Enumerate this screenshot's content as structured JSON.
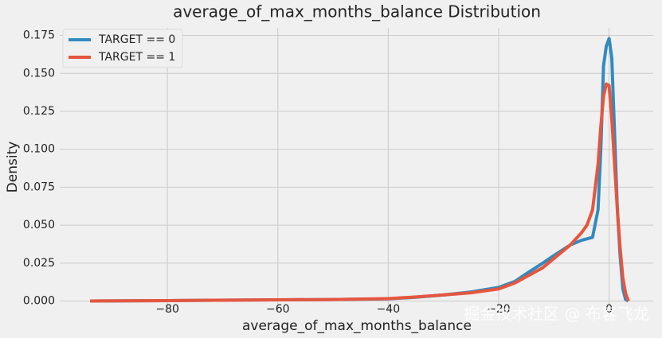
{
  "chart_data": {
    "type": "line",
    "title": "average_of_max_months_balance Distribution",
    "xlabel": "average_of_max_months_balance",
    "ylabel": "Density",
    "x": [
      -94,
      -80,
      -60,
      -50,
      -40,
      -35,
      -30,
      -25,
      -20,
      -17,
      -15,
      -12,
      -10,
      -7,
      -5,
      -4,
      -3,
      -2,
      -1.5,
      -1,
      -0.5,
      0,
      0.5,
      1,
      1.5,
      2,
      2.5,
      3,
      3.5
    ],
    "series": [
      {
        "name": "TARGET == 0",
        "color": "#348abd",
        "values": [
          0,
          0.0003,
          0.0008,
          0.001,
          0.0015,
          0.0025,
          0.004,
          0.006,
          0.009,
          0.013,
          0.018,
          0.025,
          0.03,
          0.037,
          0.04,
          0.041,
          0.042,
          0.06,
          0.1,
          0.155,
          0.168,
          0.173,
          0.16,
          0.11,
          0.06,
          0.03,
          0.008,
          0.001,
          0
        ]
      },
      {
        "name": "TARGET == 1",
        "color": "#e5563f",
        "values": [
          0,
          0.0003,
          0.0008,
          0.001,
          0.0016,
          0.0027,
          0.004,
          0.0055,
          0.008,
          0.012,
          0.016,
          0.022,
          0.028,
          0.037,
          0.045,
          0.05,
          0.06,
          0.09,
          0.115,
          0.135,
          0.143,
          0.142,
          0.12,
          0.09,
          0.06,
          0.035,
          0.015,
          0.005,
          0
        ]
      }
    ],
    "xlim": [
      -99.5,
      8
    ],
    "xticks": [
      {
        "value": -80,
        "label": "−80"
      },
      {
        "value": -60,
        "label": "−60"
      },
      {
        "value": -40,
        "label": "−40"
      },
      {
        "value": -20,
        "label": "−20"
      },
      0
    ],
    "ylim": [
      -0.006,
      0.18
    ],
    "yticks": [
      {
        "value": 0,
        "label": "0.000"
      },
      0.025,
      {
        "value": 0.05,
        "label": "0.050"
      },
      0.075,
      {
        "value": 0.1,
        "label": "0.100"
      },
      0.125,
      {
        "value": 0.15,
        "label": "0.150"
      },
      0.175
    ],
    "grid": true,
    "legend": "upper left",
    "watermark": "掘金技术社区 @ 布客飞龙"
  }
}
